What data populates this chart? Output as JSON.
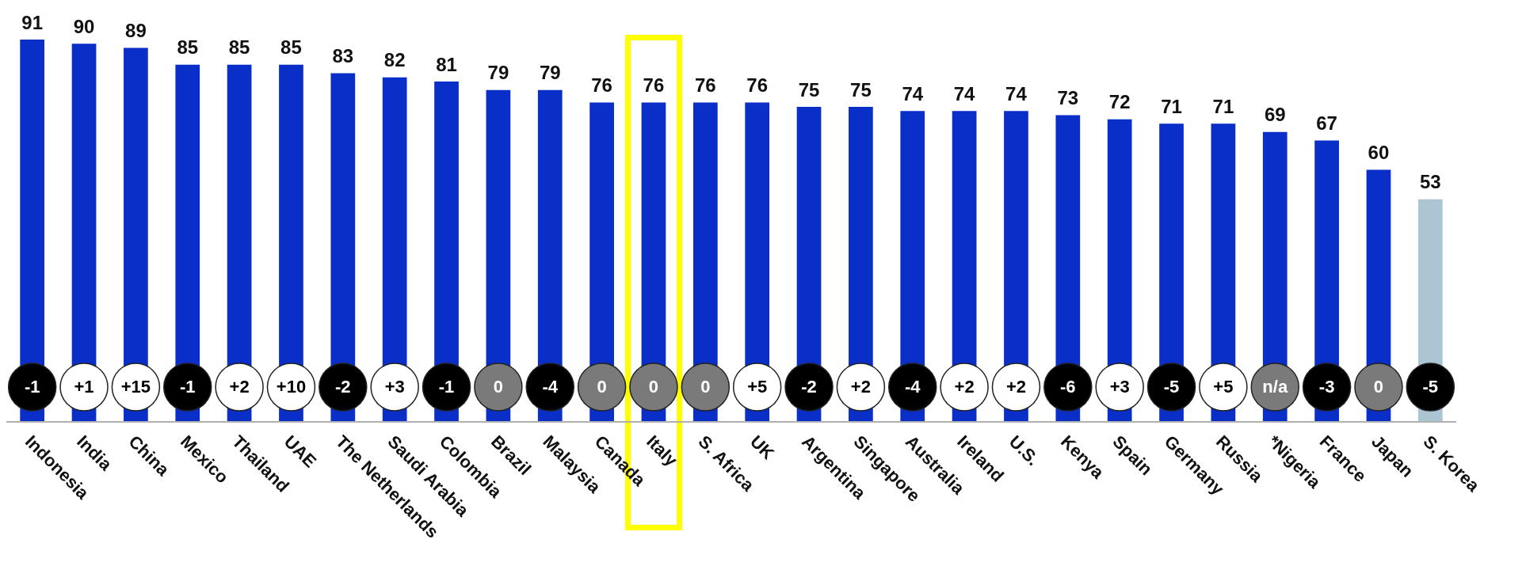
{
  "chart_data": {
    "type": "bar",
    "categories": [
      "Indonesia",
      "India",
      "China",
      "Mexico",
      "Thailand",
      "UAE",
      "The Netherlands",
      "Saudi Arabia",
      "Colombia",
      "Brazil",
      "Malaysia",
      "Canada",
      "Italy",
      "S. Africa",
      "UK",
      "Argentina",
      "Singapore",
      "Australia",
      "Ireland",
      "U.S.",
      "Kenya",
      "Spain",
      "Germany",
      "Russia",
      "*Nigeria",
      "France",
      "Japan",
      "S. Korea"
    ],
    "values": [
      91,
      90,
      89,
      85,
      85,
      85,
      83,
      82,
      81,
      79,
      79,
      76,
      76,
      76,
      76,
      75,
      75,
      74,
      74,
      74,
      73,
      72,
      71,
      71,
      69,
      67,
      60,
      53
    ],
    "colors": [
      "#0a2ec8",
      "#0a2ec8",
      "#0a2ec8",
      "#0a2ec8",
      "#0a2ec8",
      "#0a2ec8",
      "#0a2ec8",
      "#0a2ec8",
      "#0a2ec8",
      "#0a2ec8",
      "#0a2ec8",
      "#0a2ec8",
      "#0a2ec8",
      "#0a2ec8",
      "#0a2ec8",
      "#0a2ec8",
      "#0a2ec8",
      "#0a2ec8",
      "#0a2ec8",
      "#0a2ec8",
      "#0a2ec8",
      "#0a2ec8",
      "#0a2ec8",
      "#0a2ec8",
      "#0a2ec8",
      "#0a2ec8",
      "#0a2ec8",
      "#abc6d2"
    ],
    "data_labels": true,
    "annotations": [
      "-1",
      "+1",
      "+15",
      "-1",
      "+2",
      "+10",
      "-2",
      "+3",
      "-1",
      "0",
      "-4",
      "0",
      "0",
      "0",
      "+5",
      "-2",
      "+2",
      "-4",
      "+2",
      "+2",
      "-6",
      "+3",
      "-5",
      "+5",
      "n/a",
      "-3",
      "0",
      "-5"
    ],
    "legend": false,
    "grid": false
  }
}
